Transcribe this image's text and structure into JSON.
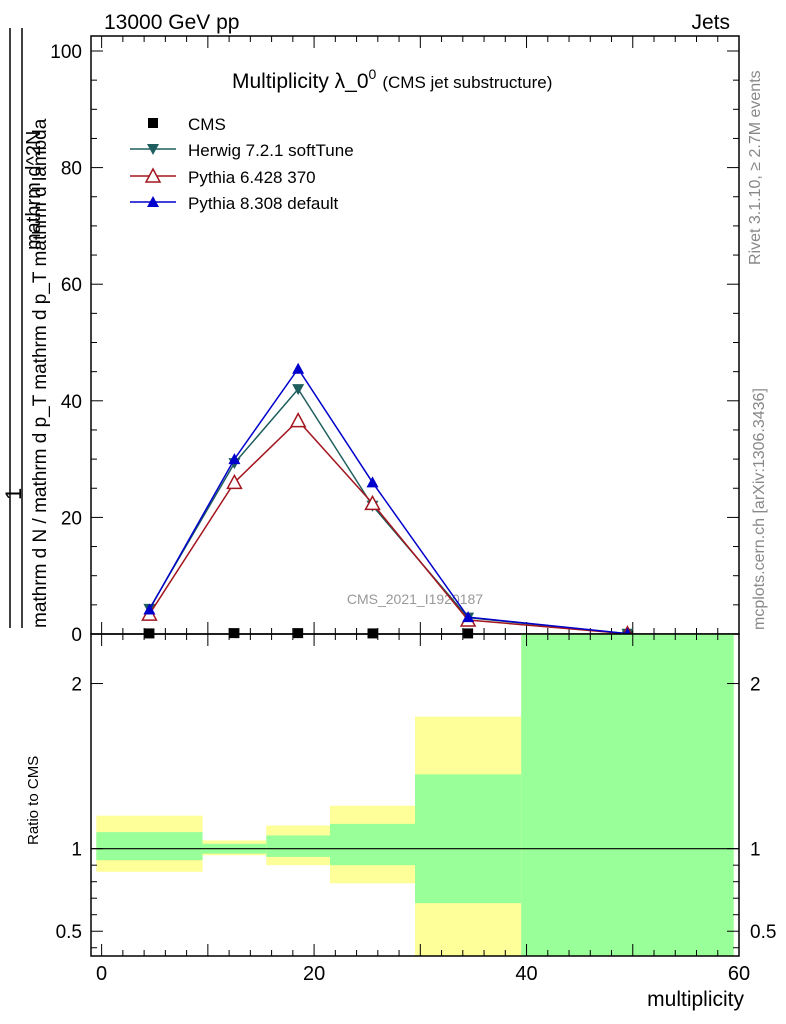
{
  "header": {
    "left": "13000 GeV pp",
    "right": "Jets"
  },
  "side_text": {
    "rivet": "Rivet 3.1.10, ≥ 2.7M events",
    "mcplots": "mcplots.cern.ch [arXiv:1306.3436]"
  },
  "watermark": "CMS_2021_I1920187",
  "colors": {
    "herwig": "#1f5e5e",
    "pythia6": "#a3151f",
    "pythia8": "#0000cc",
    "band_stat": "#99ff99",
    "band_total": "#ffff99"
  },
  "chart_data": [
    {
      "type": "line",
      "title_main": "Multiplicity λ_0",
      "title_sup": "0",
      "title_sub": "(CMS jet substructure)",
      "ylabel_top": "1",
      "ylabel_bottom": "mathrm d N / mathrm d p_T mathrm d p_T mathrm d lambda",
      "ylabel_top_text": "mathrm d^2N",
      "ylim": [
        0,
        100
      ],
      "yticks": [
        "0",
        "20",
        "40",
        "60",
        "80",
        "100"
      ],
      "xlim": [
        -1,
        60
      ],
      "x": [
        4.5,
        12.5,
        18.5,
        25.5,
        34.5,
        49.5
      ],
      "series": [
        {
          "name": "CMS",
          "key": "cms",
          "marker": "square",
          "values": [
            0.1,
            0.15,
            0.15,
            0.1,
            0.1,
            0.0
          ]
        },
        {
          "name": "Herwig 7.2.1 softTune",
          "key": "herwig",
          "marker": "triangle-down",
          "values": [
            4.3,
            29.3,
            42.0,
            22.0,
            2.8,
            0.05
          ]
        },
        {
          "name": "Pythia 6.428 370",
          "key": "pythia6",
          "marker": "triangle-open",
          "values": [
            3.4,
            26.0,
            36.6,
            22.4,
            2.4,
            0.04
          ]
        },
        {
          "name": "Pythia 8.308 default",
          "key": "pythia8",
          "marker": "triangle-up",
          "values": [
            4.2,
            30.0,
            45.5,
            26.0,
            2.9,
            0.06
          ]
        }
      ]
    },
    {
      "type": "area",
      "ylabel": "Ratio to CMS",
      "xlabel": "multiplicity",
      "ylim": [
        0.35,
        2.3
      ],
      "xlim": [
        -1,
        60
      ],
      "yticks": [
        "0.5",
        "1",
        "2"
      ],
      "ytick_values": [
        0.5,
        1,
        2
      ],
      "xticks": [
        "0",
        "20",
        "40",
        "60"
      ],
      "xtick_values": [
        0,
        20,
        40,
        60
      ],
      "bins": [
        {
          "lo": -0.5,
          "hi": 9.5,
          "total": [
            0.86,
            1.2
          ],
          "stat": [
            0.93,
            1.1
          ]
        },
        {
          "lo": 9.5,
          "hi": 15.5,
          "total": [
            0.96,
            1.05
          ],
          "stat": [
            0.97,
            1.03
          ]
        },
        {
          "lo": 15.5,
          "hi": 21.5,
          "total": [
            0.9,
            1.14
          ],
          "stat": [
            0.95,
            1.08
          ]
        },
        {
          "lo": 21.5,
          "hi": 29.5,
          "total": [
            0.79,
            1.26
          ],
          "stat": [
            0.9,
            1.15
          ]
        },
        {
          "lo": 29.5,
          "hi": 39.5,
          "total": [
            0.0,
            1.8
          ],
          "stat": [
            0.67,
            1.45
          ]
        },
        {
          "lo": 39.5,
          "hi": 59.5,
          "total": [
            0.0,
            3.0
          ],
          "stat": [
            0.0,
            3.0
          ]
        }
      ]
    }
  ]
}
